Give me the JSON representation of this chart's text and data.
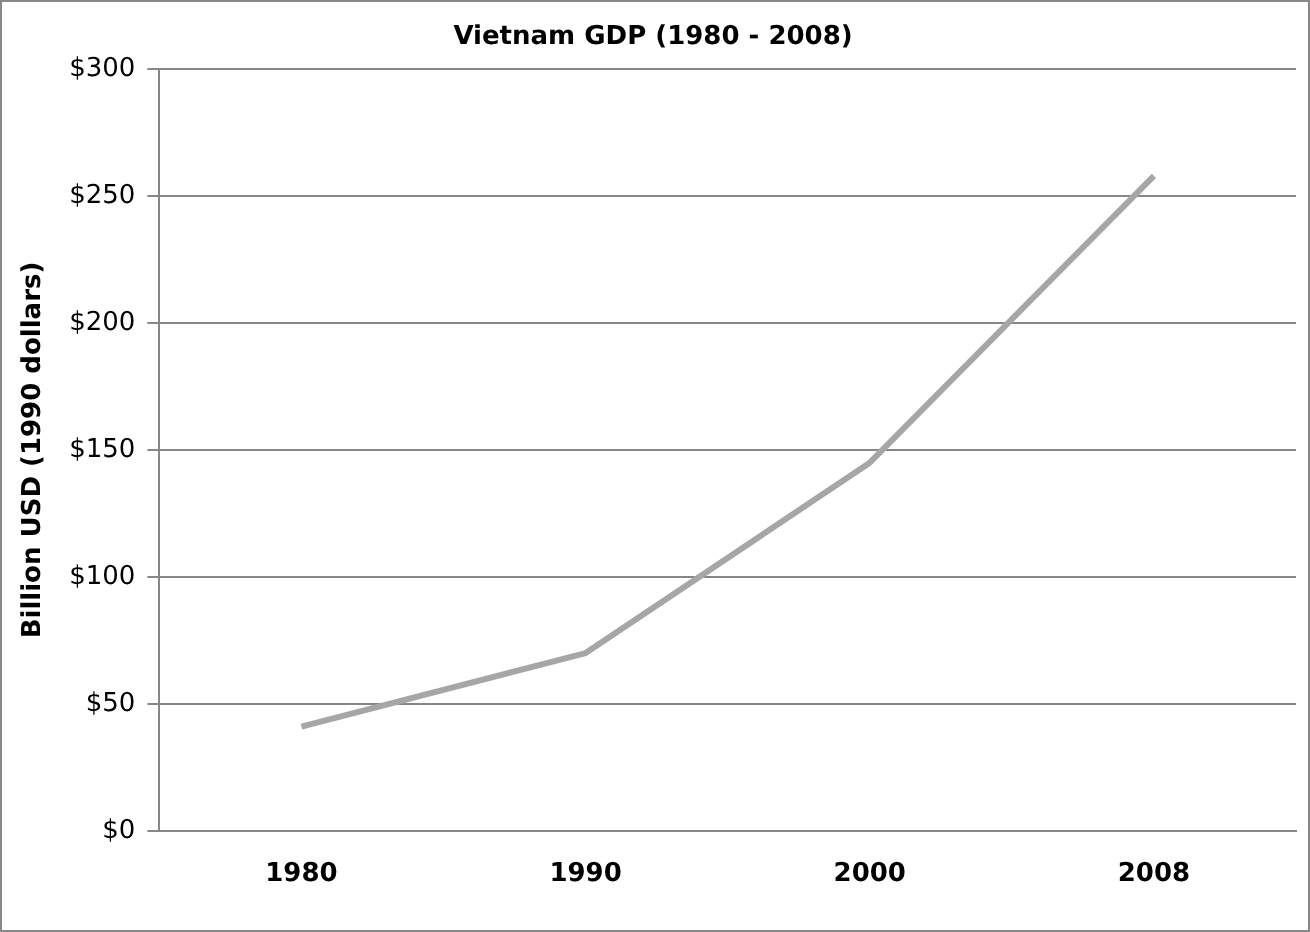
{
  "chart_data": {
    "type": "line",
    "title": "Vietnam GDP (1980 - 2008)",
    "ylabel": "Billion USD (1990 dollars)",
    "categories": [
      "1980",
      "1990",
      "2000",
      "2008"
    ],
    "series": [
      {
        "color": "#a6a6a6",
        "values": [
          41,
          70,
          145,
          258
        ]
      }
    ],
    "ylim": [
      0,
      300
    ],
    "yticks": [
      {
        "value": 0,
        "label": "$0"
      },
      {
        "value": 50,
        "label": "$50"
      },
      {
        "value": 100,
        "label": "$100"
      },
      {
        "value": 150,
        "label": "$150"
      },
      {
        "value": 200,
        "label": "$200"
      },
      {
        "value": 250,
        "label": "$250"
      },
      {
        "value": 300,
        "label": "$300"
      }
    ],
    "grid": "y",
    "legend": false,
    "marker": "none",
    "line_style": "solid"
  }
}
